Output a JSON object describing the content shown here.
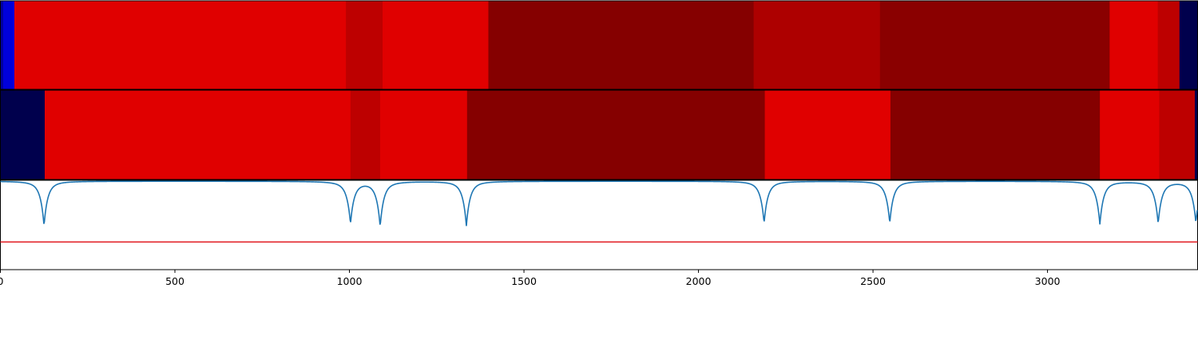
{
  "chart_data": {
    "type": "heatmap",
    "title": "",
    "xlabel": "",
    "ylabel": "",
    "xlim": [
      0,
      3430
    ],
    "xticks": [
      0,
      500,
      1000,
      1500,
      2000,
      2500,
      3000
    ],
    "xtick_labels": [
      "0",
      "500",
      "1000",
      "1500",
      "2000",
      "2500",
      "3000"
    ],
    "grid": false,
    "legend": "none",
    "colormap": "seismic",
    "color_range": [
      0,
      1
    ],
    "rows": [
      {
        "name": "",
        "segments": [
          {
            "start": 0,
            "end": 8,
            "value": 0.12
          },
          {
            "start": 8,
            "end": 40,
            "value": 0.2
          },
          {
            "start": 40,
            "end": 990,
            "value": 0.81
          },
          {
            "start": 990,
            "end": 1095,
            "value": 0.88
          },
          {
            "start": 1095,
            "end": 1398,
            "value": 0.81
          },
          {
            "start": 1398,
            "end": 2158,
            "value": 0.99
          },
          {
            "start": 2158,
            "end": 2520,
            "value": 0.91
          },
          {
            "start": 2520,
            "end": 3178,
            "value": 0.98
          },
          {
            "start": 3178,
            "end": 3316,
            "value": 0.81
          },
          {
            "start": 3316,
            "end": 3378,
            "value": 0.88
          },
          {
            "start": 3378,
            "end": 3430,
            "value": 0.0
          }
        ]
      },
      {
        "name": "",
        "segments": [
          {
            "start": 0,
            "end": 127,
            "value": 0.0
          },
          {
            "start": 127,
            "end": 1003,
            "value": 0.81
          },
          {
            "start": 1003,
            "end": 1088,
            "value": 0.88
          },
          {
            "start": 1088,
            "end": 1337,
            "value": 0.81
          },
          {
            "start": 1337,
            "end": 2190,
            "value": 0.99
          },
          {
            "start": 2190,
            "end": 2550,
            "value": 0.81
          },
          {
            "start": 2550,
            "end": 3150,
            "value": 0.99
          },
          {
            "start": 3150,
            "end": 3320,
            "value": 0.81
          },
          {
            "start": 3320,
            "end": 3422,
            "value": 0.88
          },
          {
            "start": 3422,
            "end": 3430,
            "value": 0.0
          }
        ]
      }
    ],
    "line_panel": {
      "ylim": [
        0,
        1
      ],
      "threshold": {
        "value": 0.31,
        "color": "#e3272d"
      },
      "series": {
        "color": "#1f77b4",
        "baseline": 0.99,
        "dips": [
          {
            "x": 125,
            "depth": 0.5
          },
          {
            "x": 1003,
            "depth": 0.47
          },
          {
            "x": 1088,
            "depth": 0.5
          },
          {
            "x": 1335,
            "depth": 0.5
          },
          {
            "x": 2188,
            "depth": 0.47
          },
          {
            "x": 2548,
            "depth": 0.47
          },
          {
            "x": 3150,
            "depth": 0.48
          },
          {
            "x": 3317,
            "depth": 0.47
          },
          {
            "x": 3425,
            "depth": 0.46
          }
        ]
      }
    }
  }
}
